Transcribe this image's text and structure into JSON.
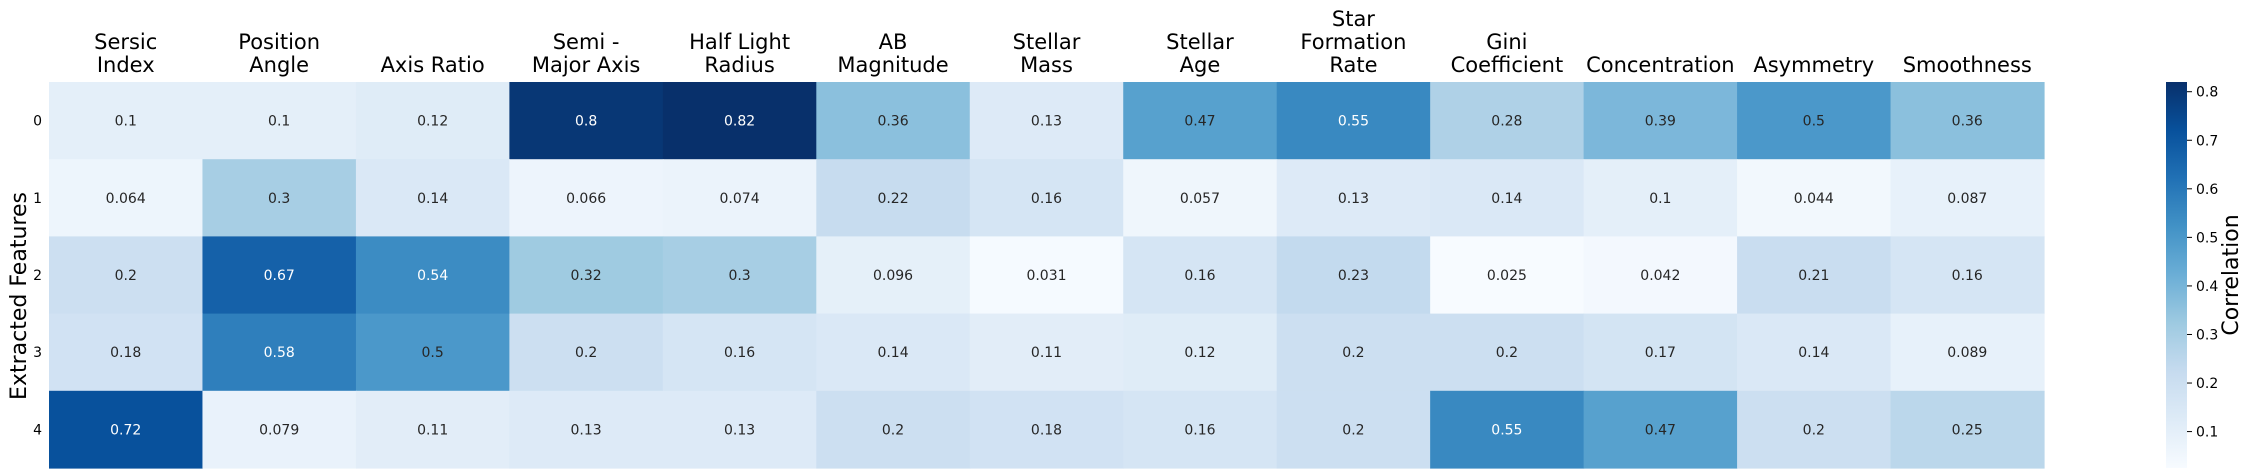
{
  "chart_data": {
    "type": "heatmap",
    "ylabel": "Extracted Features",
    "colorbar_label": "Correlation",
    "colormap": "Blues",
    "vmin": 0.025,
    "vmax": 0.82,
    "colorbar_ticks": [
      "0.1",
      "0.2",
      "0.3",
      "0.4",
      "0.5",
      "0.6",
      "0.7",
      "0.8"
    ],
    "columns": [
      [
        "Sersic",
        "Index"
      ],
      [
        "Position",
        "Angle"
      ],
      [
        "Axis Ratio"
      ],
      [
        "Semi -",
        "Major Axis"
      ],
      [
        "Half Light",
        "Radius"
      ],
      [
        "AB",
        "Magnitude"
      ],
      [
        "Stellar",
        "Mass"
      ],
      [
        "Stellar",
        "Age"
      ],
      [
        "Star",
        "Formation",
        "Rate"
      ],
      [
        "Gini",
        "Coefficient"
      ],
      [
        "Concentration"
      ],
      [
        "Asymmetry"
      ],
      [
        "Smoothness"
      ]
    ],
    "rows": [
      "0",
      "1",
      "2",
      "3",
      "4"
    ],
    "values": [
      [
        0.1,
        0.1,
        0.12,
        0.8,
        0.82,
        0.36,
        0.13,
        0.47,
        0.55,
        0.28,
        0.39,
        0.5,
        0.36
      ],
      [
        0.064,
        0.3,
        0.14,
        0.066,
        0.074,
        0.22,
        0.16,
        0.057,
        0.13,
        0.14,
        0.1,
        0.044,
        0.087
      ],
      [
        0.2,
        0.67,
        0.54,
        0.32,
        0.3,
        0.096,
        0.031,
        0.16,
        0.23,
        0.025,
        0.042,
        0.21,
        0.16
      ],
      [
        0.18,
        0.58,
        0.5,
        0.2,
        0.16,
        0.14,
        0.11,
        0.12,
        0.2,
        0.2,
        0.17,
        0.14,
        0.089
      ],
      [
        0.72,
        0.079,
        0.11,
        0.13,
        0.13,
        0.2,
        0.18,
        0.16,
        0.2,
        0.55,
        0.47,
        0.2,
        0.25
      ]
    ],
    "grid": false,
    "legend": "colorbar-right"
  }
}
